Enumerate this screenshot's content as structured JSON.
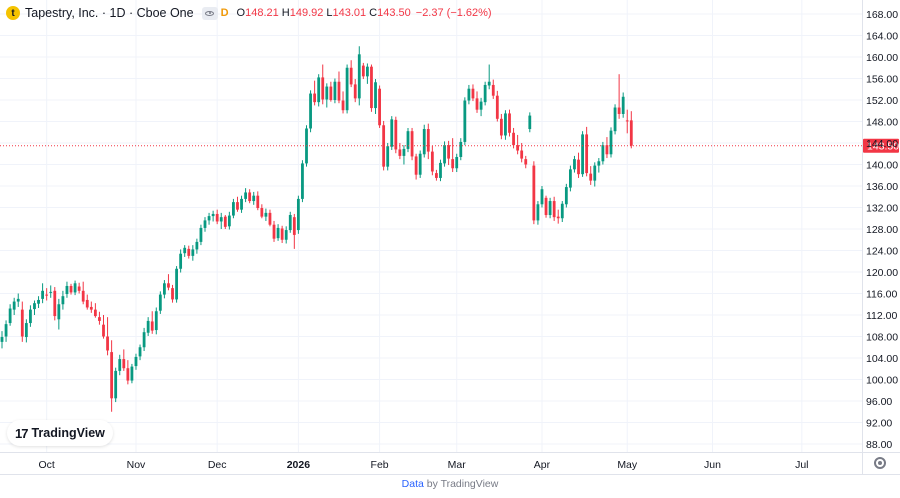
{
  "header": {
    "logo_letter": "t",
    "symbol": "Tapestry, Inc. · 1D · Cboe One",
    "interval_badge": "D",
    "o_key": "O",
    "o_val": "148.21",
    "h_key": "H",
    "h_val": "149.92",
    "l_key": "L",
    "l_val": "143.01",
    "c_key": "C",
    "c_val": "143.50",
    "change": "−2.37 (−1.62%)"
  },
  "watermark": {
    "mark": "17",
    "text": "TradingView"
  },
  "footer": {
    "data_word": "Data",
    "by_text": " by TradingView"
  },
  "icons": {
    "settings": "gear-icon",
    "visibility": "eye-icon"
  },
  "colors": {
    "up": "#089981",
    "down": "#f23645",
    "grid": "#f0f3fa",
    "price_line": "#f23645"
  },
  "chart_data": {
    "type": "candlestick",
    "y_range": [
      86,
      170
    ],
    "y_ticks": [
      "168.00",
      "164.00",
      "160.00",
      "156.00",
      "152.00",
      "148.00",
      "144.00",
      "140.00",
      "136.00",
      "132.00",
      "128.00",
      "124.00",
      "120.00",
      "116.00",
      "112.00",
      "108.00",
      "104.00",
      "100.00",
      "96.00",
      "92.00",
      "88.00"
    ],
    "x_ticks": [
      {
        "label": "Oct",
        "index": 11,
        "bold": false
      },
      {
        "label": "Nov",
        "index": 33,
        "bold": false
      },
      {
        "label": "Dec",
        "index": 53,
        "bold": false
      },
      {
        "label": "2026",
        "index": 73,
        "bold": true
      },
      {
        "label": "Feb",
        "index": 93,
        "bold": false
      },
      {
        "label": "Mar",
        "index": 112,
        "bold": false
      },
      {
        "label": "Apr",
        "index": 133,
        "bold": false
      },
      {
        "label": "May",
        "index": 154,
        "bold": false
      },
      {
        "label": "Jun",
        "index": 175,
        "bold": false
      },
      {
        "label": "Jul",
        "index": 197,
        "bold": false
      }
    ],
    "last_price": "143.50",
    "ohlc": [
      [
        107.0,
        109.0,
        105.8,
        107.9
      ],
      [
        108.0,
        111.0,
        107.0,
        110.3
      ],
      [
        110.5,
        114.0,
        110.0,
        113.2
      ],
      [
        113.0,
        115.2,
        112.0,
        114.5
      ],
      [
        114.5,
        116.0,
        113.5,
        115.0
      ],
      [
        113.0,
        114.5,
        107.0,
        108.0
      ],
      [
        107.9,
        111.2,
        106.9,
        110.5
      ],
      [
        110.5,
        113.8,
        109.8,
        113.0
      ],
      [
        113.1,
        114.7,
        112.0,
        114.2
      ],
      [
        114.1,
        115.5,
        113.3,
        114.8
      ],
      [
        115.0,
        117.9,
        114.2,
        116.5
      ],
      [
        115.8,
        117.0,
        114.7,
        115.6
      ],
      [
        116.2,
        117.5,
        115.2,
        116.3
      ],
      [
        116.5,
        117.2,
        111.0,
        111.8
      ],
      [
        111.2,
        115.0,
        109.3,
        114.0
      ],
      [
        114.0,
        116.5,
        113.0,
        115.5
      ],
      [
        115.9,
        118.2,
        115.2,
        117.4
      ],
      [
        117.4,
        117.8,
        115.8,
        116.2
      ],
      [
        116.2,
        118.4,
        115.7,
        117.9
      ],
      [
        117.3,
        118.0,
        116.0,
        116.5
      ],
      [
        116.5,
        118.2,
        114.0,
        114.5
      ],
      [
        114.8,
        115.8,
        113.0,
        113.4
      ],
      [
        113.5,
        114.5,
        112.4,
        113.0
      ],
      [
        113.0,
        114.2,
        111.5,
        111.8
      ],
      [
        111.6,
        112.6,
        110.2,
        110.9
      ],
      [
        110.2,
        112.0,
        107.6,
        108.0
      ],
      [
        108.0,
        111.6,
        104.5,
        105.4
      ],
      [
        105.1,
        107.3,
        94.0,
        96.5
      ],
      [
        96.5,
        102.2,
        95.8,
        101.6
      ],
      [
        101.6,
        104.6,
        100.8,
        103.8
      ],
      [
        103.8,
        105.6,
        101.6,
        102.1
      ],
      [
        102.1,
        103.6,
        99.1,
        99.8
      ],
      [
        99.8,
        102.9,
        99.3,
        102.4
      ],
      [
        102.5,
        104.8,
        101.8,
        104.2
      ],
      [
        104.3,
        106.5,
        103.6,
        106.0
      ],
      [
        106.0,
        109.6,
        105.3,
        108.8
      ],
      [
        108.7,
        111.6,
        108.1,
        110.9
      ],
      [
        110.8,
        112.7,
        108.5,
        109.1
      ],
      [
        109.2,
        113.4,
        108.4,
        112.7
      ],
      [
        112.8,
        116.4,
        112.2,
        115.8
      ],
      [
        115.8,
        118.5,
        115.1,
        117.9
      ],
      [
        117.9,
        119.6,
        116.6,
        117.1
      ],
      [
        117.0,
        117.6,
        114.3,
        114.9
      ],
      [
        114.9,
        121.1,
        114.3,
        120.6
      ],
      [
        120.6,
        124.2,
        119.9,
        123.4
      ],
      [
        123.5,
        125.0,
        122.8,
        124.5
      ],
      [
        124.3,
        124.9,
        122.5,
        123.0
      ],
      [
        123.0,
        125.0,
        122.1,
        124.2
      ],
      [
        124.2,
        126.2,
        123.4,
        125.6
      ],
      [
        125.6,
        128.8,
        125.0,
        128.2
      ],
      [
        128.2,
        130.2,
        127.5,
        129.6
      ],
      [
        129.6,
        131.0,
        128.8,
        130.4
      ],
      [
        130.4,
        131.4,
        129.4,
        130.8
      ],
      [
        130.8,
        131.6,
        128.9,
        129.4
      ],
      [
        129.4,
        131.0,
        128.0,
        130.2
      ],
      [
        130.3,
        130.6,
        128.0,
        128.4
      ],
      [
        128.5,
        131.2,
        127.9,
        130.5
      ],
      [
        130.5,
        133.6,
        130.0,
        133.0
      ],
      [
        133.0,
        134.0,
        131.2,
        131.6
      ],
      [
        131.6,
        134.2,
        131.0,
        133.6
      ],
      [
        133.6,
        135.6,
        133.0,
        134.8
      ],
      [
        134.8,
        135.4,
        132.8,
        133.2
      ],
      [
        133.2,
        134.9,
        132.5,
        134.2
      ],
      [
        134.2,
        135.0,
        131.5,
        131.9
      ],
      [
        131.9,
        132.6,
        130.0,
        130.3
      ],
      [
        130.3,
        131.8,
        129.5,
        131.0
      ],
      [
        131.0,
        131.6,
        128.5,
        128.8
      ],
      [
        128.8,
        129.5,
        125.6,
        126.2
      ],
      [
        126.3,
        128.9,
        125.8,
        128.2
      ],
      [
        128.1,
        128.6,
        125.4,
        126.0
      ],
      [
        126.0,
        128.5,
        125.3,
        127.8
      ],
      [
        127.8,
        131.2,
        127.3,
        130.6
      ],
      [
        130.2,
        130.8,
        124.3,
        126.9
      ],
      [
        127.8,
        134.2,
        127.1,
        133.6
      ],
      [
        133.6,
        140.8,
        133.0,
        140.2
      ],
      [
        140.2,
        147.3,
        139.6,
        146.7
      ],
      [
        146.7,
        153.8,
        146.0,
        153.2
      ],
      [
        153.2,
        155.6,
        151.0,
        151.6
      ],
      [
        151.6,
        156.8,
        150.8,
        156.2
      ],
      [
        156.2,
        158.6,
        151.2,
        152.1
      ],
      [
        152.1,
        155.1,
        150.6,
        154.5
      ],
      [
        154.5,
        155.4,
        151.7,
        152.0
      ],
      [
        152.0,
        156.0,
        151.4,
        155.4
      ],
      [
        155.4,
        157.3,
        151.4,
        151.9
      ],
      [
        151.9,
        153.6,
        149.5,
        150.1
      ],
      [
        150.1,
        158.6,
        149.5,
        158.0
      ],
      [
        158.0,
        159.4,
        154.4,
        154.9
      ],
      [
        154.9,
        155.9,
        151.6,
        152.3
      ],
      [
        152.3,
        162.0,
        151.0,
        160.5
      ],
      [
        158.4,
        158.9,
        155.9,
        156.4
      ],
      [
        156.4,
        158.8,
        155.0,
        158.2
      ],
      [
        158.2,
        158.6,
        149.8,
        150.5
      ],
      [
        150.5,
        155.9,
        149.4,
        155.3
      ],
      [
        154.1,
        154.7,
        146.8,
        147.3
      ],
      [
        147.3,
        148.1,
        138.9,
        139.6
      ],
      [
        139.6,
        144.0,
        138.9,
        143.4
      ],
      [
        143.3,
        149.0,
        142.7,
        148.4
      ],
      [
        148.3,
        148.9,
        142.1,
        142.8
      ],
      [
        142.8,
        144.0,
        141.0,
        141.6
      ],
      [
        141.6,
        143.6,
        140.0,
        142.9
      ],
      [
        142.9,
        146.8,
        142.3,
        146.2
      ],
      [
        146.2,
        146.8,
        140.8,
        141.5
      ],
      [
        141.5,
        142.0,
        137.2,
        138.1
      ],
      [
        138.1,
        142.6,
        137.5,
        142.0
      ],
      [
        141.9,
        147.4,
        141.3,
        146.6
      ],
      [
        146.6,
        147.6,
        141.0,
        142.4
      ],
      [
        142.4,
        143.5,
        138.0,
        138.7
      ],
      [
        138.4,
        139.0,
        137.0,
        137.5
      ],
      [
        137.5,
        140.9,
        136.9,
        140.3
      ],
      [
        140.2,
        144.3,
        139.6,
        143.6
      ],
      [
        143.6,
        144.4,
        139.9,
        141.1
      ],
      [
        141.0,
        144.9,
        138.6,
        139.3
      ],
      [
        139.3,
        142.0,
        138.6,
        141.4
      ],
      [
        141.4,
        144.9,
        140.8,
        144.2
      ],
      [
        144.2,
        152.5,
        143.6,
        151.9
      ],
      [
        151.9,
        154.8,
        151.2,
        154.1
      ],
      [
        154.1,
        154.9,
        151.8,
        152.3
      ],
      [
        152.3,
        153.6,
        149.6,
        150.2
      ],
      [
        150.2,
        152.4,
        149.0,
        151.7
      ],
      [
        151.6,
        155.4,
        151.0,
        154.8
      ],
      [
        154.7,
        158.6,
        154.0,
        155.4
      ],
      [
        154.8,
        155.8,
        152.2,
        152.8
      ],
      [
        152.8,
        153.7,
        148.0,
        148.5
      ],
      [
        148.5,
        149.4,
        144.7,
        145.4
      ],
      [
        145.4,
        150.1,
        144.6,
        149.5
      ],
      [
        149.5,
        150.2,
        145.2,
        145.9
      ],
      [
        145.9,
        146.8,
        143.0,
        143.6
      ],
      [
        143.6,
        145.5,
        141.9,
        142.6
      ],
      [
        142.6,
        144.0,
        140.4,
        141.1
      ],
      [
        141.0,
        141.6,
        139.3,
        140.0
      ],
      [
        146.6,
        149.7,
        146.0,
        149.1
      ],
      [
        139.8,
        140.6,
        128.9,
        129.6
      ],
      [
        129.6,
        133.2,
        128.8,
        132.6
      ],
      [
        132.6,
        136.0,
        132.0,
        135.4
      ],
      [
        133.8,
        134.2,
        130.1,
        130.6
      ],
      [
        130.6,
        133.8,
        130.0,
        133.2
      ],
      [
        133.2,
        134.0,
        129.5,
        130.2
      ],
      [
        130.3,
        131.6,
        129.0,
        130.0
      ],
      [
        130.0,
        133.2,
        129.3,
        132.7
      ],
      [
        132.6,
        136.4,
        132.0,
        135.8
      ],
      [
        135.7,
        139.8,
        135.0,
        139.1
      ],
      [
        139.1,
        141.6,
        138.5,
        141.0
      ],
      [
        140.9,
        142.2,
        137.5,
        138.2
      ],
      [
        138.2,
        146.2,
        137.7,
        145.6
      ],
      [
        145.6,
        147.0,
        137.8,
        138.4
      ],
      [
        138.3,
        139.7,
        136.2,
        137.0
      ],
      [
        137.0,
        140.4,
        135.9,
        139.8
      ],
      [
        139.8,
        141.2,
        138.5,
        140.6
      ],
      [
        140.6,
        144.2,
        140.0,
        143.6
      ],
      [
        143.6,
        145.1,
        141.2,
        141.9
      ],
      [
        141.9,
        146.9,
        141.3,
        146.3
      ],
      [
        146.2,
        151.2,
        145.6,
        150.6
      ],
      [
        150.6,
        156.8,
        148.5,
        149.4
      ],
      [
        149.4,
        153.4,
        148.7,
        152.6
      ],
      [
        148.2,
        150.2,
        145.8,
        148.1
      ],
      [
        148.21,
        149.92,
        143.01,
        143.5
      ]
    ]
  }
}
